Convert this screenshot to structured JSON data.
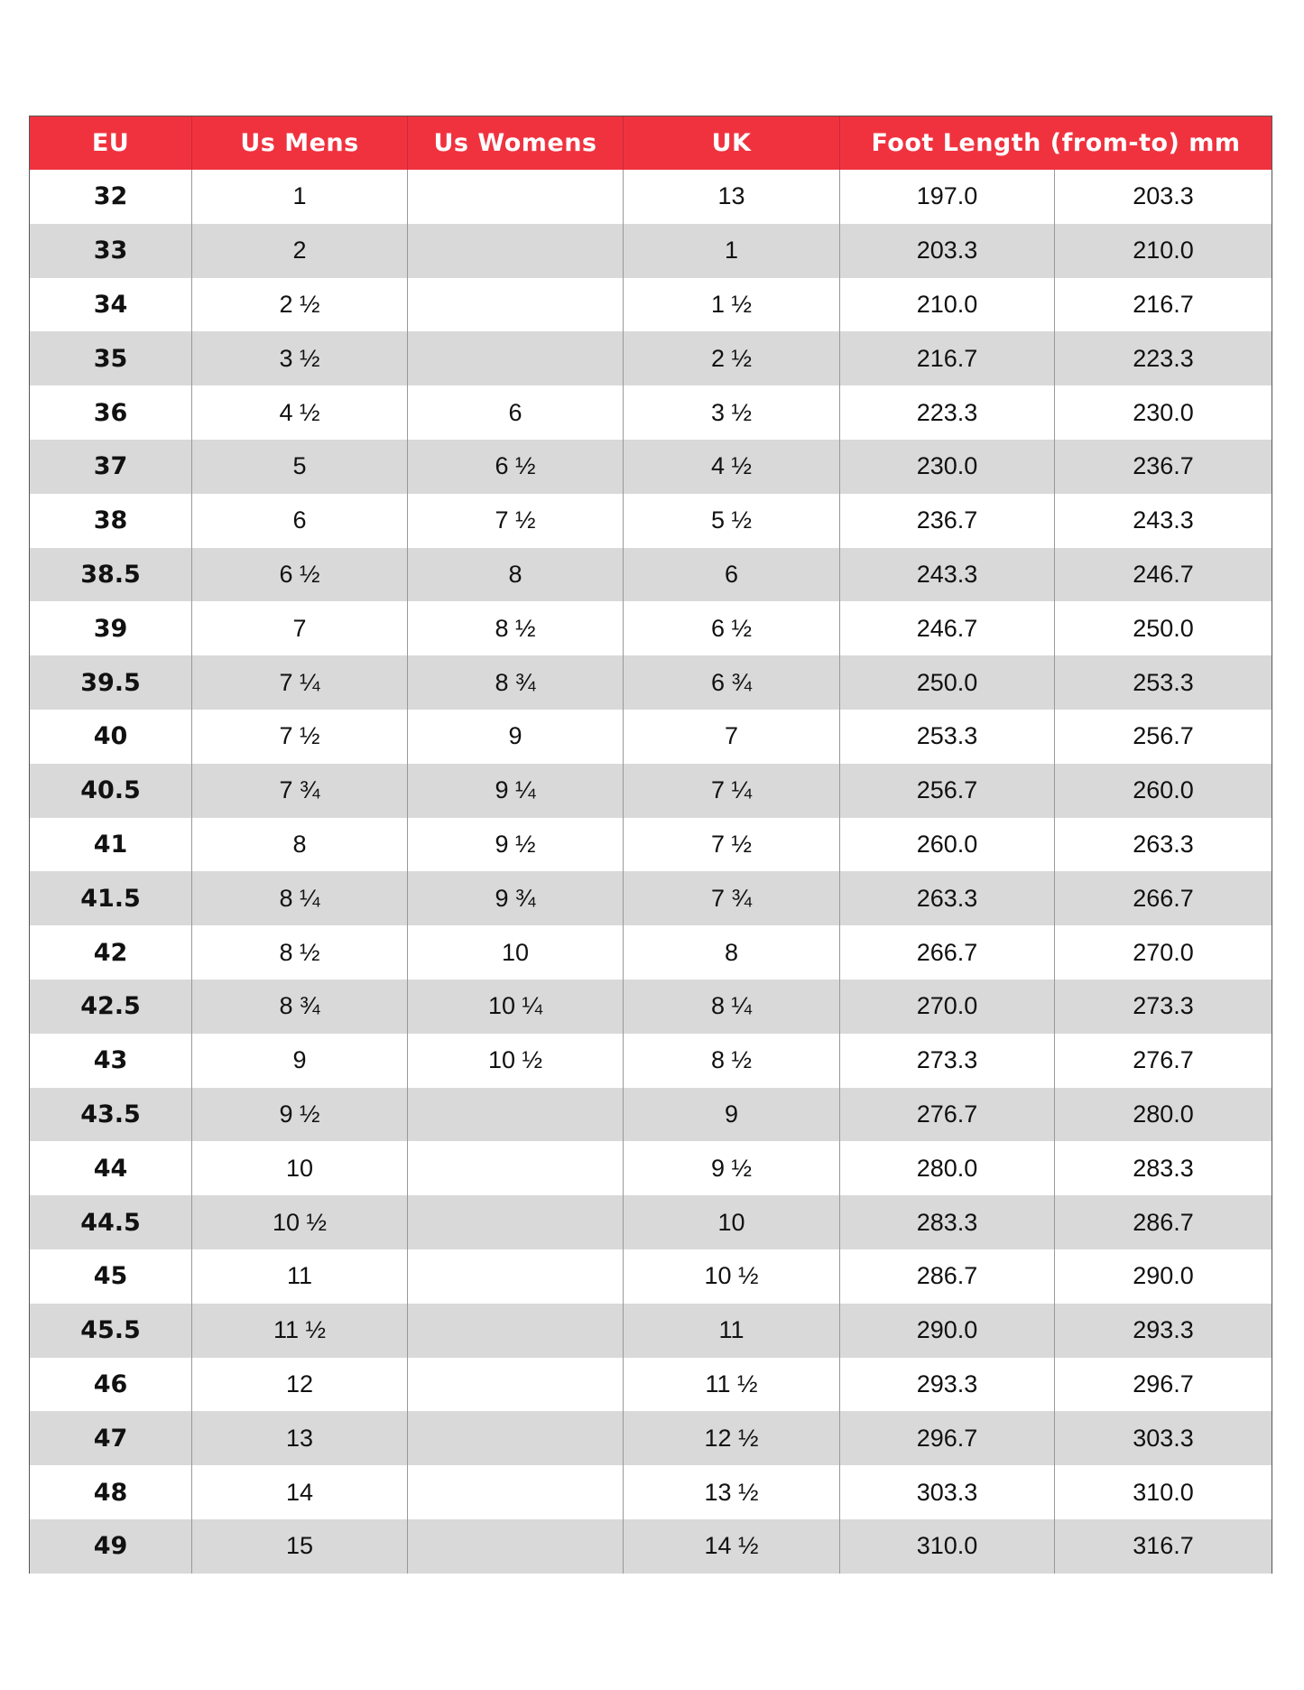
{
  "table": {
    "headers": [
      "EU",
      "Us Mens",
      "Us Womens",
      "UK",
      "Foot Length (from-to) mm"
    ],
    "rows": [
      [
        "32",
        "1",
        null,
        "13",
        "197.0",
        "203.3"
      ],
      [
        "33",
        "2",
        null,
        "1",
        "203.3",
        "210.0"
      ],
      [
        "34",
        "2 ½",
        null,
        "1 ½",
        "210.0",
        "216.7"
      ],
      [
        "35",
        "3 ½",
        null,
        "2 ½",
        "216.7",
        "223.3"
      ],
      [
        "36",
        "4 ½",
        "6",
        "3 ½",
        "223.3",
        "230.0"
      ],
      [
        "37",
        "5",
        "6 ½",
        "4 ½",
        "230.0",
        "236.7"
      ],
      [
        "38",
        "6",
        "7 ½",
        "5 ½",
        "236.7",
        "243.3"
      ],
      [
        "38.5",
        "6 ½",
        "8",
        "6",
        "243.3",
        "246.7"
      ],
      [
        "39",
        "7",
        "8 ½",
        "6 ½",
        "246.7",
        "250.0"
      ],
      [
        "39.5",
        "7 ¼",
        "8 ¾",
        "6 ¾",
        "250.0",
        "253.3"
      ],
      [
        "40",
        "7 ½",
        "9",
        "7",
        "253.3",
        "256.7"
      ],
      [
        "40.5",
        "7 ¾",
        "9 ¼",
        "7 ¼",
        "256.7",
        "260.0"
      ],
      [
        "41",
        "8",
        "9 ½",
        "7 ½",
        "260.0",
        "263.3"
      ],
      [
        "41.5",
        "8 ¼",
        "9 ¾",
        "7 ¾",
        "263.3",
        "266.7"
      ],
      [
        "42",
        "8 ½",
        "10",
        "8",
        "266.7",
        "270.0"
      ],
      [
        "42.5",
        "8 ¾",
        "10 ¼",
        "8 ¼",
        "270.0",
        "273.3"
      ],
      [
        "43",
        "9",
        "10 ½",
        "8 ½",
        "273.3",
        "276.7"
      ],
      [
        "43.5",
        "9 ½",
        null,
        "9",
        "276.7",
        "280.0"
      ],
      [
        "44",
        "10",
        null,
        "9 ½",
        "280.0",
        "283.3"
      ],
      [
        "44.5",
        "10 ½",
        null,
        "10",
        "283.3",
        "286.7"
      ],
      [
        "45",
        "11",
        null,
        "10 ½",
        "286.7",
        "290.0"
      ],
      [
        "45.5",
        "11 ½",
        null,
        "11",
        "290.0",
        "293.3"
      ],
      [
        "46",
        "12",
        null,
        "11 ½",
        "293.3",
        "296.7"
      ],
      [
        "47",
        "13",
        null,
        "12 ½",
        "296.7",
        "303.3"
      ],
      [
        "48",
        "14",
        null,
        "13 ½",
        "303.3",
        "310.0"
      ],
      [
        "49",
        "15",
        null,
        "14 ½",
        "310.0",
        "316.7"
      ]
    ]
  }
}
